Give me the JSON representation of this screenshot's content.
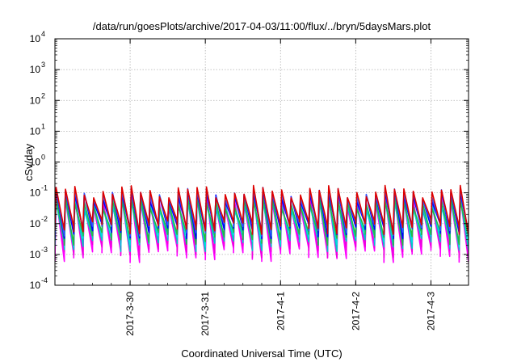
{
  "chart_data": {
    "type": "line",
    "title": "/data/run/goesPlots/archive/2017-04-03/11:00/flux/../bryn/5daysMars.plot",
    "xlabel": "Coordinated Universal Time (UTC)",
    "ylabel": "cSv/day",
    "yscale": "log",
    "ylim": [
      0.0001,
      10000
    ],
    "y_ticks": [
      {
        "value": 0.0001,
        "mantissa": "10",
        "exp": "-4"
      },
      {
        "value": 0.001,
        "mantissa": "10",
        "exp": "-3"
      },
      {
        "value": 0.01,
        "mantissa": "10",
        "exp": "-2"
      },
      {
        "value": 0.1,
        "mantissa": "10",
        "exp": "-1"
      },
      {
        "value": 1,
        "mantissa": "10",
        "exp": "0"
      },
      {
        "value": 10,
        "mantissa": "10",
        "exp": "1"
      },
      {
        "value": 100,
        "mantissa": "10",
        "exp": "2"
      },
      {
        "value": 1000,
        "mantissa": "10",
        "exp": "3"
      },
      {
        "value": 10000,
        "mantissa": "10",
        "exp": "4"
      }
    ],
    "xlim": [
      "2017-03-29 00:00",
      "2017-04-03 12:00"
    ],
    "x_ticks": [
      {
        "value": "2017-03-30 00:00",
        "label": "2017-3-30"
      },
      {
        "value": "2017-03-31 00:00",
        "label": "2017-3-31"
      },
      {
        "value": "2017-04-01 00:00",
        "label": "2017-4-1"
      },
      {
        "value": "2017-04-02 00:00",
        "label": "2017-4-2"
      },
      {
        "value": "2017-04-03 00:00",
        "label": "2017-4-3"
      }
    ],
    "grid": true,
    "cycle_hours": 3.0,
    "series": [
      {
        "color": "#ff00ff",
        "peak": 0.055,
        "trough": 0.0011
      },
      {
        "color": "#ee00dd",
        "peak": 0.06,
        "trough": 0.0016
      },
      {
        "color": "#00c8c8",
        "peak": 0.045,
        "trough": 0.0025
      },
      {
        "color": "#00dddd",
        "peak": 0.05,
        "trough": 0.0035
      },
      {
        "color": "#22bb44",
        "peak": 0.05,
        "trough": 0.004
      },
      {
        "color": "#0000ff",
        "peak": 0.085,
        "trough": 0.0065
      },
      {
        "color": "#3355ff",
        "peak": 0.1,
        "trough": 0.008
      },
      {
        "color": "#dd0000",
        "peak": 0.115,
        "trough": 0.009
      }
    ]
  }
}
